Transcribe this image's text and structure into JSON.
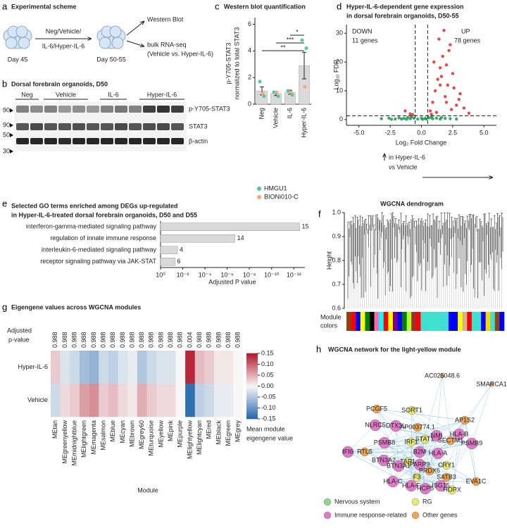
{
  "scheme": {
    "panel": "a",
    "title": "Experimental scheme",
    "start": "Day 45",
    "treatment": [
      "Neg/Vehicle/",
      "IL-6/Hyper-IL-6"
    ],
    "end": "Day 50-55",
    "outputs": [
      "Western Blot",
      "bulk RNA-seq",
      "(Vehicle vs. Hyper-IL-6)"
    ]
  },
  "blot": {
    "panel": "b",
    "title": "Dorsal forebrain organoids, D50",
    "lanes": [
      "Neg",
      "Vehicle",
      "IL-6",
      "Hyper-IL-6"
    ],
    "markers": [
      90,
      90,
      50,
      30
    ],
    "bands": [
      "p-Y705-STAT3",
      "STAT3",
      "β-actin"
    ]
  },
  "chart_data": [
    {
      "panel": "c",
      "type": "bar",
      "title": "Western blot quantification",
      "ylabel": [
        "p-Y705-STAT3",
        "normalized to total STAT3"
      ],
      "categories": [
        "Neg",
        "Vehicle",
        "IL-6",
        "Hyper-IL-6"
      ],
      "values": [
        1.0,
        0.8,
        0.9,
        2.9
      ],
      "errors": [
        0.3,
        0.15,
        0.15,
        1.0
      ],
      "color": "#d9d9d9",
      "ylim": [
        0,
        6.5
      ],
      "yticks": [
        0,
        2,
        4,
        6
      ],
      "series": [
        {
          "name": "HMGU1",
          "color": "#4fc9a6",
          "points": [
            [
              1.7,
              0.6
            ],
            [
              0.9,
              0.6
            ],
            [
              1.0,
              0.7
            ],
            [
              4.8,
              4.2
            ]
          ]
        },
        {
          "name": "BIONi010-C",
          "color": "#f4a582",
          "points": [
            [
              0.8
            ],
            [
              0.9
            ],
            [
              0.9
            ],
            [
              1.3
            ]
          ]
        }
      ],
      "significance": [
        "**",
        "***",
        "*"
      ]
    },
    {
      "panel": "d",
      "type": "scatter",
      "title": [
        "Hyper-IL-6-dependent gene expression",
        "in dorsal forebrain organoids, D50-55"
      ],
      "annotations": {
        "down": [
          "DOWN",
          "11 genes"
        ],
        "up": [
          "UP",
          "78 genes"
        ],
        "direction": [
          "in Hyper-IL-6",
          "vs Vehicle"
        ]
      },
      "xlabel": "Log₂ Fold Change",
      "ylabel": "Log₁₀ FDR",
      "xlim": [
        -6,
        6
      ],
      "ylim": [
        -2,
        33
      ],
      "xticks": [
        {
          "value": -5,
          "label": "-5.0"
        },
        {
          "value": -2.5,
          "label": "-2.5"
        },
        {
          "value": 0,
          "label": "0.0"
        },
        {
          "value": 2.5,
          "label": "2.5"
        },
        {
          "value": 5,
          "label": "5.0"
        }
      ],
      "yticks": [
        0,
        10,
        20,
        30
      ],
      "thresholds_x": [
        -0.5,
        0.5
      ],
      "threshold_y": 1.3,
      "series": [
        {
          "color": "#1a9850",
          "x": [
            -3.2,
            -2.6,
            -2.1,
            -1.8,
            -1.4,
            -1.1,
            -0.9,
            -0.6,
            -0.3,
            0.1,
            0.3,
            0.6,
            0.9,
            1.2,
            1.5,
            1.9,
            2.3,
            2.8,
            -2.4,
            -1.6,
            -0.8,
            0.0,
            0.8,
            1.6,
            -1.2,
            0.4
          ],
          "y": [
            0.3,
            0.5,
            0.2,
            0.6,
            0.4,
            0.7,
            0.3,
            0.5,
            0.2,
            0.1,
            0.4,
            0.6,
            0.3,
            0.5,
            0.2,
            0.4,
            0.3,
            0.2,
            0.1,
            0.2,
            0.9,
            0.5,
            0.8,
            0.7,
            0.1,
            0.2
          ]
        },
        {
          "color": "#e8262a",
          "x": [
            0.7,
            0.9,
            1.1,
            1.3,
            1.5,
            1.7,
            1.9,
            2.1,
            2.3,
            2.5,
            2.8,
            3.1,
            3.4,
            1.0,
            1.4,
            1.8,
            2.2,
            2.6,
            3.0,
            1.2,
            1.6,
            2.0,
            2.4,
            0.8,
            -0.9,
            -1.3,
            -0.7,
            3.8,
            1.5,
            2.0
          ],
          "y": [
            3,
            6,
            10,
            14,
            18,
            22,
            8,
            12,
            26,
            16,
            5,
            9,
            4,
            20,
            28,
            31,
            24,
            11,
            7,
            2.5,
            15,
            19,
            3.5,
            1.8,
            2,
            3,
            1.7,
            2.2,
            12,
            6
          ]
        }
      ]
    },
    {
      "panel": "e",
      "type": "bar",
      "orientation": "horizontal",
      "title": [
        "Selected GO terms enriched among DEGs up-regulated",
        "in Hyper-IL-6-treated dorsal forebrain organoids, D50 and D55"
      ],
      "categories": [
        "interferon-gamma-mediated signaling pathway",
        "regulation of innate immune response",
        "interleukin-6-mediated signaling pathway",
        "receptor signaling pathway via JAK-STAT"
      ],
      "values": [
        3e-13,
        2e-07,
        0.03,
        0.05
      ],
      "counts": [
        15,
        14,
        4,
        6
      ],
      "color": "#d9d9d9",
      "xlabel": "Adjusted P value",
      "xscale": "log",
      "xlim": [
        1,
        1e-13
      ],
      "xticks": [
        {
          "value": 1,
          "label": "10⁰"
        },
        {
          "value": 0.01,
          "label": "10⁻²"
        },
        {
          "value": 0.0001,
          "label": "10⁻⁴"
        },
        {
          "value": 1e-06,
          "label": "10⁻⁶"
        },
        {
          "value": 1e-08,
          "label": "10⁻⁸"
        },
        {
          "value": 1e-10,
          "label": "10⁻¹⁰"
        },
        {
          "value": 1e-12,
          "label": "10⁻¹²"
        }
      ]
    },
    {
      "panel": "f",
      "type": "dendrogram",
      "title": "WGCNA dendrogram",
      "ylabel": "Height",
      "ylim": [
        0.6,
        1.0
      ],
      "yticks": [
        0.6,
        0.7,
        0.8,
        0.9,
        {
          "value": 1,
          "label": "1.0"
        }
      ],
      "strip_label": [
        "Module",
        "colors"
      ],
      "module_colors": [
        "#8b4513",
        "#ff0000",
        "#0000ff",
        "#ffff00",
        "#008000",
        "#000000",
        "#ff69b4",
        "#00ffff",
        "#ff0000",
        "#ffff00",
        "#800080",
        "#0000ff",
        "#008000",
        "#adff2f",
        "#a52a2a",
        "#ff0000",
        "#40e0d0",
        "#40e0d0",
        "#40e0d0",
        "#40e0d0",
        "#40e0d0",
        "#40e0d0",
        "#0000ff",
        "#0000ff",
        "#ffff00",
        "#d2b48c",
        "#ff0000",
        "#40e0d0",
        "#40e0d0",
        "#0000ff",
        "#ffd700",
        "#40e0d0",
        "#8b4513",
        "#0000ff"
      ]
    },
    {
      "panel": "g",
      "type": "heatmap",
      "title": "Eigengene values across WGCNA modules",
      "pvalue_label": [
        "Adjusted",
        "p-value"
      ],
      "xlabel": "Module",
      "categories": [
        "MEtan",
        "MEgreenyellow",
        "MEmidnightblue",
        "MElightgreen",
        "MEmagenta",
        "MEsalmon",
        "MEblue",
        "MEcyan",
        "MEbrown",
        "MEgrey60",
        "MEturquoise",
        "MEyellow",
        "MEpink",
        "MEpurple",
        "MElightyellow",
        "MElightcyan",
        "MEred",
        "MEblack",
        "MEgreen",
        "MEgrey"
      ],
      "pvalues": [
        0.988,
        0.988,
        0.988,
        0.988,
        0.988,
        0.988,
        0.988,
        0.988,
        0.988,
        0.988,
        0.988,
        0.988,
        0.988,
        0.988,
        0.004,
        0.988,
        0.988,
        0.988,
        0.988,
        0.988
      ],
      "rows": [
        "Hyper-IL-6",
        "Vehicle"
      ],
      "values": [
        [
          0.03,
          -0.02,
          -0.03,
          -0.06,
          -0.07,
          -0.03,
          -0.04,
          -0.02,
          -0.01,
          -0.05,
          -0.03,
          -0.02,
          -0.02,
          0.0,
          0.14,
          0.04,
          0.03,
          0.01,
          0.01,
          0.0
        ],
        [
          -0.03,
          0.02,
          0.03,
          0.06,
          0.07,
          0.03,
          0.04,
          0.02,
          0.01,
          0.05,
          0.03,
          0.02,
          0.02,
          0.0,
          -0.14,
          -0.04,
          -0.03,
          -0.01,
          -0.01,
          0.0
        ]
      ],
      "zlim": [
        -0.15,
        0.15
      ],
      "zticks": [
        0.15,
        {
          "value": 0.1,
          "label": "0.10"
        },
        0.05,
        {
          "value": 0,
          "label": "0.00"
        },
        -0.05,
        {
          "value": -0.1,
          "label": "-0.10"
        },
        -0.15
      ],
      "colormap": [
        "#2166ac",
        "#f7f7f7",
        "#b2182b"
      ],
      "colorbar_label": [
        "Mean module",
        "eigengene value"
      ]
    }
  ],
  "network": {
    "panel": "h",
    "title": "WGCNA network for the light-yellow module",
    "legend": [
      {
        "name": "Nervous system",
        "color": "#93d393"
      },
      {
        "name": "RG",
        "color": "#eaea70"
      },
      {
        "name": "Immune response-related",
        "color": "#e07ac8"
      },
      {
        "name": "Other genes",
        "color": "#f2a552"
      }
    ],
    "nodes": [
      {
        "label": "AC025048.6",
        "color": "#f2a552"
      },
      {
        "label": "SMARCA1",
        "color": "#f2a552"
      },
      {
        "label": "PCGF5",
        "color": "#f2a552"
      },
      {
        "label": "SORT1",
        "color": "#eaea70"
      },
      {
        "label": "AP1S2",
        "color": "#f2a552"
      },
      {
        "label": "NLRC5",
        "color": "#e07ac8"
      },
      {
        "label": "DTX3L",
        "color": "#e07ac8"
      },
      {
        "label": "AP003774.1",
        "color": "#f2a552"
      },
      {
        "label": "NMI",
        "color": "#e07ac8"
      },
      {
        "label": "HLA-B",
        "color": "#e07ac8"
      },
      {
        "label": "STAT1",
        "color": "#eaea70"
      },
      {
        "label": "IRF1",
        "color": "#eaea70"
      },
      {
        "label": "PSMB9",
        "color": "#e07ac8"
      },
      {
        "label": "PSMB8",
        "color": "#e07ac8"
      },
      {
        "label": "B2M",
        "color": "#e07ac8"
      },
      {
        "label": "HLA-A",
        "color": "#e07ac8"
      },
      {
        "label": "IFI6",
        "color": "#e07ac8"
      },
      {
        "label": "RTL5",
        "color": "#f2a552"
      },
      {
        "label": "BTN3A2",
        "color": "#e07ac8"
      },
      {
        "label": "TAP1",
        "color": "#eaea70"
      },
      {
        "label": "SECTM1",
        "color": "#f2a552"
      },
      {
        "label": "BTN3A1",
        "color": "#e07ac8"
      },
      {
        "label": "PARP9",
        "color": "#e07ac8"
      },
      {
        "label": "PRDX6",
        "color": "#f2a552"
      },
      {
        "label": "CRY1",
        "color": "#eaea70"
      },
      {
        "label": "HLA-C",
        "color": "#e07ac8"
      },
      {
        "label": "F3",
        "color": "#eaea70"
      },
      {
        "label": "SATB3",
        "color": "#f2a552"
      },
      {
        "label": "EVA1C",
        "color": "#f2a552"
      },
      {
        "label": "HLA-F",
        "color": "#e07ac8"
      },
      {
        "label": "HCP5",
        "color": "#e07ac8"
      },
      {
        "label": "ISG15",
        "color": "#e07ac8"
      },
      {
        "label": "HOPX",
        "color": "#eaea70"
      }
    ]
  }
}
